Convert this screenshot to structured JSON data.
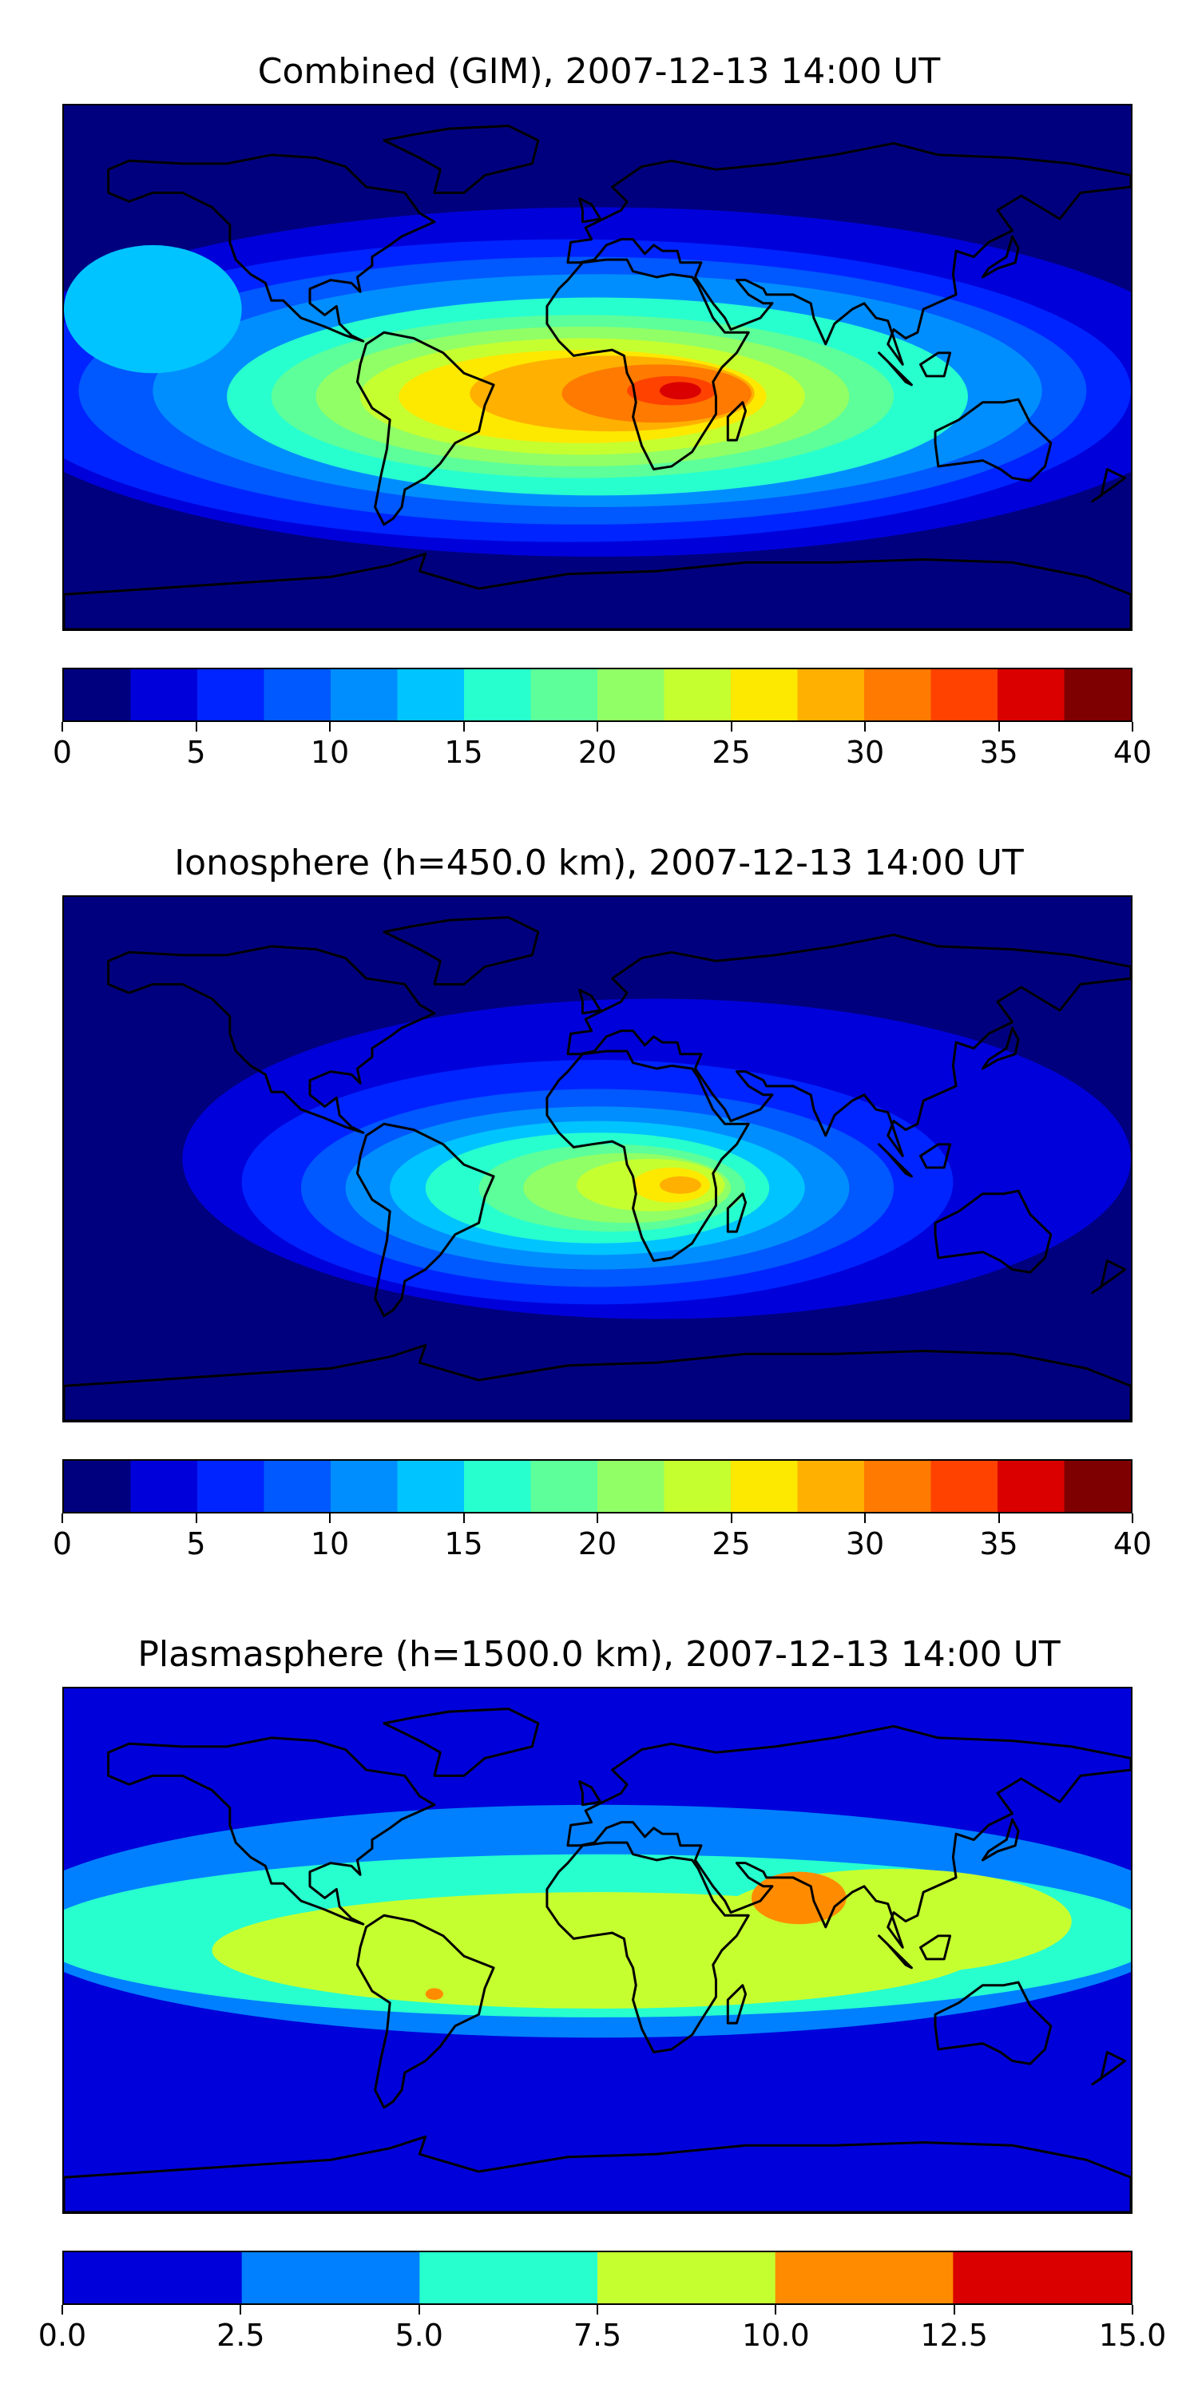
{
  "chart_data": [
    {
      "type": "heatmap",
      "title": "Combined (GIM), 2007-12-13 14:00 UT",
      "colorbar": {
        "levels": [
          0,
          2.5,
          5,
          7.5,
          10,
          12.5,
          15,
          17.5,
          20,
          22.5,
          25,
          27.5,
          30,
          32.5,
          35,
          37.5,
          40
        ],
        "colors": [
          "#00007f",
          "#0000da",
          "#0024ff",
          "#0058ff",
          "#008eff",
          "#00c4ff",
          "#27ffcf",
          "#5cff9a",
          "#91ff66",
          "#c6ff30",
          "#fde800",
          "#ffb000",
          "#ff7a00",
          "#ff4200",
          "#da0000",
          "#7f0000"
        ],
        "tick_values": [
          0,
          5,
          10,
          15,
          20,
          25,
          30,
          35,
          40
        ],
        "tick_labels": [
          "0",
          "5",
          "10",
          "15",
          "20",
          "25",
          "30",
          "35",
          "40"
        ],
        "range": [
          0,
          40
        ]
      },
      "map": {
        "projection": "equirectangular",
        "lon_range": [
          -180,
          180
        ],
        "lat_range": [
          -90,
          90
        ],
        "coastlines": true
      },
      "features": [
        {
          "lon": -150,
          "lat": 20,
          "value": 14
        },
        {
          "lon": -40,
          "lat": -10,
          "value": 26
        },
        {
          "lon": 30,
          "lat": -10,
          "value": 37
        },
        {
          "lon": 100,
          "lat": 0,
          "value": 17
        },
        {
          "lon": 0,
          "lat": 70,
          "value": 2
        }
      ]
    },
    {
      "type": "heatmap",
      "title": "Ionosphere  (h=450.0 km), 2007-12-13 14:00 UT",
      "colorbar": {
        "levels": [
          0,
          2.5,
          5,
          7.5,
          10,
          12.5,
          15,
          17.5,
          20,
          22.5,
          25,
          27.5,
          30,
          32.5,
          35,
          37.5,
          40
        ],
        "colors": [
          "#00007f",
          "#0000da",
          "#0024ff",
          "#0058ff",
          "#008eff",
          "#00c4ff",
          "#27ffcf",
          "#5cff9a",
          "#91ff66",
          "#c6ff30",
          "#fde800",
          "#ffb000",
          "#ff7a00",
          "#ff4200",
          "#da0000",
          "#7f0000"
        ],
        "tick_values": [
          0,
          5,
          10,
          15,
          20,
          25,
          30,
          35,
          40
        ],
        "tick_labels": [
          "0",
          "5",
          "10",
          "15",
          "20",
          "25",
          "30",
          "35",
          "40"
        ],
        "range": [
          0,
          40
        ]
      },
      "map": {
        "projection": "equirectangular",
        "lon_range": [
          -180,
          180
        ],
        "lat_range": [
          -90,
          90
        ],
        "coastlines": true
      },
      "features": [
        {
          "lon": 30,
          "lat": -10,
          "value": 29
        },
        {
          "lon": -40,
          "lat": -10,
          "value": 20
        },
        {
          "lon": 100,
          "lat": 10,
          "value": 6
        },
        {
          "lon": -150,
          "lat": 0,
          "value": 3
        }
      ]
    },
    {
      "type": "heatmap",
      "title": "Plasmasphere (h=1500.0 km), 2007-12-13 14:00 UT",
      "colorbar": {
        "levels": [
          0,
          2.5,
          5,
          7.5,
          10,
          12.5,
          15
        ],
        "colors": [
          "#0000da",
          "#0080ff",
          "#27ffcf",
          "#c6ff30",
          "#ff8c00",
          "#da0000"
        ],
        "tick_values": [
          0,
          2.5,
          5,
          7.5,
          10,
          12.5,
          15
        ],
        "tick_labels": [
          "0.0",
          "2.5",
          "5.0",
          "7.5",
          "10.0",
          "12.5",
          "15.0"
        ],
        "range": [
          0,
          15
        ]
      },
      "map": {
        "projection": "equirectangular",
        "lon_range": [
          -180,
          180
        ],
        "lat_range": [
          -90,
          90
        ],
        "coastlines": true
      },
      "features": [
        {
          "lon": 70,
          "lat": 20,
          "value": 11
        },
        {
          "lon": -50,
          "lat": -15,
          "value": 11
        },
        {
          "lon": 0,
          "lat": 0,
          "value": 8
        },
        {
          "lon": -150,
          "lat": 10,
          "value": 5
        }
      ]
    }
  ]
}
